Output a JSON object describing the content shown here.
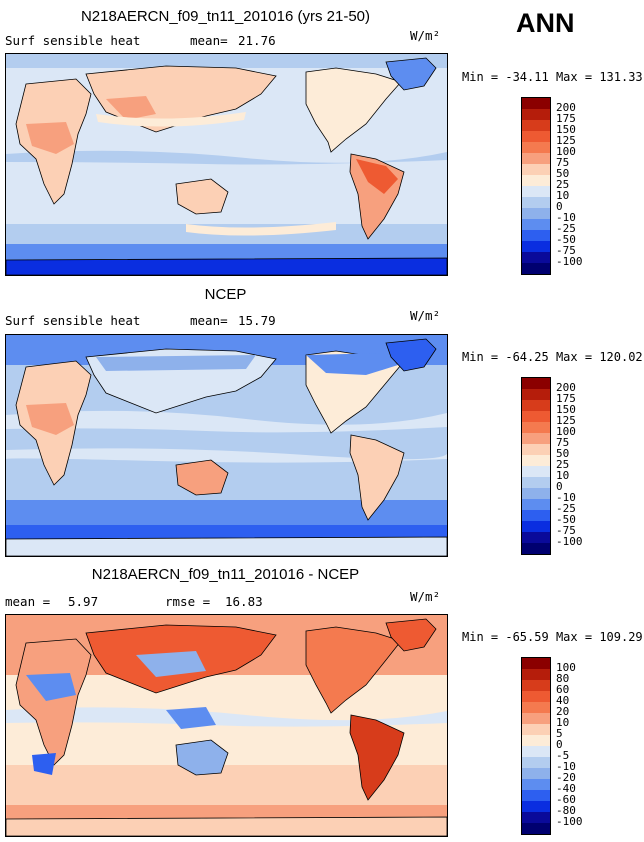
{
  "season": "ANN",
  "panels": [
    {
      "title": "N218AERCN_f09_tn11_201016 (yrs 21-50)",
      "left_label": "Surf sensible heat",
      "mid_label": "mean=",
      "mid_value": "21.76",
      "units": "W/m²",
      "min_label": "Min =",
      "min_value": "-34.11",
      "max_label": "Max =",
      "max_value": "131.33",
      "colorbar_labels": [
        "200",
        "175",
        "150",
        "125",
        "100",
        "75",
        "50",
        "25",
        "10",
        "0",
        "-10",
        "-25",
        "-50",
        "-75",
        "-100"
      ],
      "colorbar_colors": [
        "#8b0000",
        "#b51d0b",
        "#d73c1b",
        "#ee5a32",
        "#f47a4f",
        "#f7a07e",
        "#fcd0b5",
        "#fdecd8",
        "#dbe7f6",
        "#b3cdef",
        "#8eb1eb",
        "#5d8df0",
        "#2d5ff0",
        "#0a2ee0",
        "#0a0a9a",
        "#000070"
      ]
    },
    {
      "title": "NCEP",
      "left_label": "Surf sensible heat",
      "mid_label": "mean=",
      "mid_value": "15.79",
      "units": "W/m²",
      "min_label": "Min =",
      "min_value": "-64.25",
      "max_label": "Max =",
      "max_value": "120.02",
      "colorbar_labels": [
        "200",
        "175",
        "150",
        "125",
        "100",
        "75",
        "50",
        "25",
        "10",
        "0",
        "-10",
        "-25",
        "-50",
        "-75",
        "-100"
      ],
      "colorbar_colors": [
        "#8b0000",
        "#b51d0b",
        "#d73c1b",
        "#ee5a32",
        "#f47a4f",
        "#f7a07e",
        "#fcd0b5",
        "#fdecd8",
        "#dbe7f6",
        "#b3cdef",
        "#8eb1eb",
        "#5d8df0",
        "#2d5ff0",
        "#0a2ee0",
        "#0a0a9a",
        "#000070"
      ]
    },
    {
      "title": "N218AERCN_f09_tn11_201016 - NCEP",
      "left_label": "mean =",
      "left_value": "5.97",
      "mid_label": "rmse =",
      "mid_value": "16.83",
      "units": "W/m²",
      "min_label": "Min =",
      "min_value": "-65.59",
      "max_label": "Max =",
      "max_value": "109.29",
      "colorbar_labels": [
        "100",
        "80",
        "60",
        "40",
        "20",
        "10",
        "5",
        "0",
        "-5",
        "-10",
        "-20",
        "-40",
        "-60",
        "-80",
        "-100"
      ],
      "colorbar_colors": [
        "#8b0000",
        "#b51d0b",
        "#d73c1b",
        "#ee5a32",
        "#f47a4f",
        "#f7a07e",
        "#fcd0b5",
        "#fdecd8",
        "#dbe7f6",
        "#b3cdef",
        "#8eb1eb",
        "#5d8df0",
        "#2d5ff0",
        "#0a2ee0",
        "#0a0a9a",
        "#000070"
      ]
    }
  ]
}
